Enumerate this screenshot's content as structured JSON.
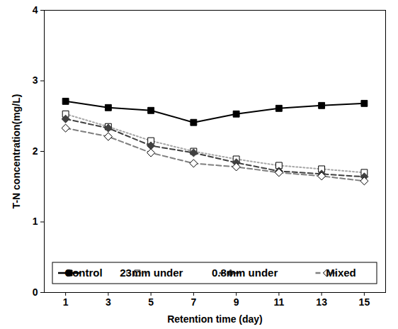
{
  "chart_data": {
    "type": "line",
    "x_label": "Retention time (day)",
    "y_label": "T-N concentration(mg/L)",
    "x": [
      1,
      3,
      5,
      7,
      9,
      11,
      13,
      15
    ],
    "xlim": [
      0,
      16
    ],
    "xticks": [
      1,
      3,
      5,
      7,
      9,
      11,
      13,
      15
    ],
    "ylim": [
      0,
      4
    ],
    "yticks": [
      0,
      1,
      2,
      3,
      4
    ],
    "grid": false,
    "legend": "lower center",
    "series": [
      {
        "name": "Control",
        "color": "#000000",
        "marker": "square",
        "line_style": "solid",
        "values": [
          2.71,
          2.62,
          2.58,
          2.41,
          2.53,
          2.61,
          2.65,
          2.68
        ]
      },
      {
        "name": "23mm under",
        "color": "#a6a6a6",
        "marker": "square-open",
        "line_style": "dotted",
        "values": [
          2.53,
          2.35,
          2.15,
          2.0,
          1.89,
          1.8,
          1.75,
          1.7
        ]
      },
      {
        "name": "0.8mm under",
        "color": "#404040",
        "marker": "diamond",
        "line_style": "dashed",
        "values": [
          2.46,
          2.33,
          2.08,
          1.98,
          1.84,
          1.72,
          1.68,
          1.64
        ]
      },
      {
        "name": "Mixed",
        "color": "#7f7f7f",
        "marker": "diamond-open",
        "line_style": "dashed",
        "values": [
          2.33,
          2.21,
          1.98,
          1.83,
          1.78,
          1.7,
          1.65,
          1.58
        ]
      }
    ]
  }
}
